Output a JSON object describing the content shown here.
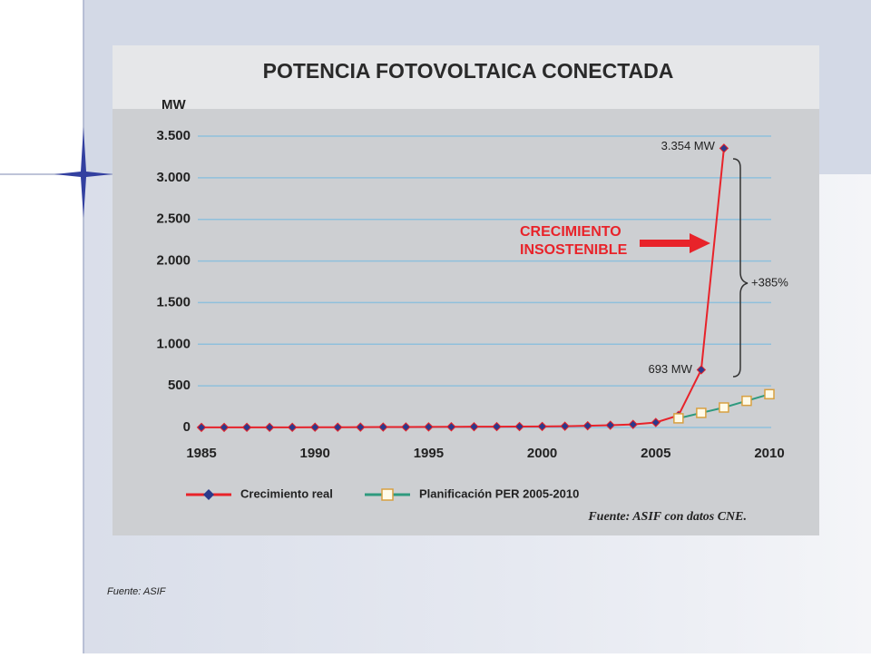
{
  "chart_data": {
    "type": "line",
    "title": "POTENCIA FOTOVOLTAICA CONECTADA",
    "y_label": "MW",
    "x": [
      1985,
      1986,
      1987,
      1988,
      1989,
      1990,
      1991,
      1992,
      1993,
      1994,
      1995,
      1996,
      1997,
      1998,
      1999,
      2000,
      2001,
      2002,
      2003,
      2004,
      2005,
      2006,
      2007,
      2008,
      2009,
      2010
    ],
    "series": [
      {
        "name": "Crecimiento real",
        "color": "#e8232a",
        "marker_color": "#2b3a8c",
        "values": [
          1,
          1,
          2,
          2,
          2,
          3,
          3,
          4,
          5,
          6,
          7,
          8,
          9,
          10,
          11,
          12,
          15,
          20,
          27,
          37,
          60,
          145,
          693,
          3354,
          null,
          null
        ],
        "value_labels": [
          null,
          null,
          null,
          null,
          null,
          null,
          null,
          null,
          null,
          null,
          null,
          null,
          null,
          null,
          null,
          null,
          null,
          null,
          null,
          null,
          null,
          null,
          "693 MW",
          "3.354 MW",
          null,
          null
        ]
      },
      {
        "name": "Planificación PER 2005-2010",
        "color": "#2e9a7e",
        "marker_color": "#d8a040",
        "values": [
          null,
          null,
          null,
          null,
          null,
          null,
          null,
          null,
          null,
          null,
          null,
          null,
          null,
          null,
          null,
          null,
          null,
          null,
          null,
          null,
          null,
          110,
          175,
          240,
          320,
          400
        ]
      }
    ],
    "xlim": [
      1985,
      2010
    ],
    "xticks": [
      1985,
      1990,
      1995,
      2000,
      2005,
      2010
    ],
    "ylim": [
      0,
      3500
    ],
    "yticks": [
      0,
      500,
      {
        "value": 1000,
        "label": "1.000"
      },
      {
        "value": 1500,
        "label": "1.500"
      },
      {
        "value": 2000,
        "label": "2.000"
      },
      {
        "value": 2500,
        "label": "2.500"
      },
      {
        "value": 3000,
        "label": "3.000"
      },
      {
        "value": 3500,
        "label": "3.500"
      }
    ],
    "grid": true,
    "annotations": {
      "warning": [
        "CRECIMIENTO",
        "INSOSTENIBLE"
      ],
      "growth": "+385%"
    },
    "source": "Fuente: ASIF con datos CNE."
  },
  "caption": "Fuente: ASIF"
}
